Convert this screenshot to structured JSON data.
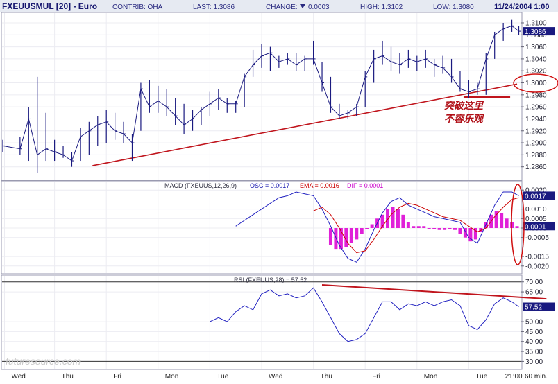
{
  "header": {
    "symbol": "FXEUUSMUL [20] - Euro",
    "contrib": "CONTRIB: OHA",
    "last": "LAST: 1.3086",
    "change_label": "CHANGE:",
    "change_value": "0.0003",
    "high": "HIGH: 1.3102",
    "low": "LOW: 1.3080",
    "datetime": "11/24/2004 1:00"
  },
  "watermark": "futuresource.com",
  "colors": {
    "price": "#1a1a80",
    "trend": "#c0141c",
    "macd_hist": "#e020d8",
    "signal": "#cc0000",
    "label_box": "#1a1a80"
  },
  "annotations": {
    "breakout_line1": "突破这里",
    "breakout_line2": "不容乐观"
  },
  "chart_data": [
    {
      "type": "line",
      "panel": "price",
      "x_axis": {
        "interval": "60 min.",
        "labels": [
          "Wed",
          "Thu",
          "Fri",
          "Mon",
          "Tue",
          "Wed",
          "Thu",
          "Fri",
          "Mon",
          "Tue",
          "21:00"
        ],
        "positions": [
          0.1,
          3,
          6,
          9,
          12,
          15,
          18,
          21,
          24,
          27,
          29.5
        ]
      },
      "ylim": [
        1.284,
        1.3115
      ],
      "yticks": [
        1.286,
        1.288,
        1.29,
        1.292,
        1.294,
        1.296,
        1.298,
        1.3,
        1.302,
        1.304,
        1.306,
        1.308,
        1.31
      ],
      "current_label": "1.3086",
      "series": [
        {
          "kind": "hlc",
          "x": [
            0,
            1,
            1.5,
            2,
            2.5,
            3,
            3.5,
            4,
            4.5,
            5,
            5.5,
            6,
            6.5,
            7,
            7.5,
            8,
            8.5,
            9,
            9.5,
            10,
            10.5,
            11,
            11.5,
            12,
            12.5,
            13,
            13.5,
            14,
            14.5,
            15,
            15.5,
            16,
            16.5,
            17,
            17.5,
            18,
            18.5,
            19,
            19.5,
            20,
            20.5,
            21,
            21.5,
            22,
            22.5,
            23,
            23.5,
            24,
            24.5,
            25,
            25.5,
            26,
            26.5,
            27,
            27.5,
            28,
            28.5,
            29,
            29.5,
            29.9
          ],
          "high": [
            1.2905,
            1.291,
            1.296,
            1.301,
            1.295,
            1.2905,
            1.2895,
            1.2885,
            1.2925,
            1.2935,
            1.2945,
            1.2955,
            1.295,
            1.2935,
            1.2915,
            1.3,
            1.3005,
            1.2995,
            1.299,
            1.2975,
            1.2965,
            1.2955,
            1.296,
            1.2985,
            1.299,
            1.2975,
            1.297,
            1.3015,
            1.3055,
            1.3065,
            1.306,
            1.3045,
            1.305,
            1.305,
            1.3045,
            1.307,
            1.3035,
            1.301,
            1.2965,
            1.2955,
            1.2965,
            1.302,
            1.3055,
            1.307,
            1.306,
            1.305,
            1.3055,
            1.3045,
            1.3055,
            1.304,
            1.3045,
            1.304,
            1.302,
            1.3005,
            1.3,
            1.305,
            1.3085,
            1.31,
            1.3105,
            1.3095
          ],
          "low": [
            1.2885,
            1.288,
            1.287,
            1.285,
            1.287,
            1.287,
            1.2875,
            1.286,
            1.287,
            1.288,
            1.2895,
            1.29,
            1.2905,
            1.29,
            1.287,
            1.292,
            1.295,
            1.295,
            1.2945,
            1.293,
            1.2915,
            1.292,
            1.293,
            1.2945,
            1.2955,
            1.295,
            1.295,
            1.296,
            1.301,
            1.3025,
            1.302,
            1.3025,
            1.303,
            1.302,
            1.302,
            1.303,
            1.2985,
            1.295,
            1.294,
            1.294,
            1.2945,
            1.296,
            1.3,
            1.303,
            1.302,
            1.3015,
            1.3025,
            1.302,
            1.3025,
            1.301,
            1.3015,
            1.3,
            1.2985,
            1.2975,
            1.298,
            1.298,
            1.304,
            1.307,
            1.3085,
            1.308
          ],
          "close": [
            1.2895,
            1.289,
            1.294,
            1.288,
            1.289,
            1.2885,
            1.288,
            1.287,
            1.291,
            1.292,
            1.293,
            1.2935,
            1.292,
            1.2915,
            1.29,
            1.299,
            1.296,
            1.297,
            1.296,
            1.2945,
            1.293,
            1.294,
            1.2955,
            1.2965,
            1.2975,
            1.2965,
            1.2965,
            1.301,
            1.303,
            1.3045,
            1.305,
            1.3035,
            1.304,
            1.303,
            1.304,
            1.304,
            1.3,
            1.296,
            1.2945,
            1.295,
            1.296,
            1.301,
            1.304,
            1.3045,
            1.3035,
            1.303,
            1.304,
            1.3035,
            1.304,
            1.303,
            1.3025,
            1.301,
            1.299,
            1.2985,
            1.299,
            1.304,
            1.308,
            1.309,
            1.3095,
            1.3086
          ]
        }
      ],
      "trendlines": [
        {
          "x": [
            5.2,
            29.8
          ],
          "y": [
            1.2862,
            1.2998
          ]
        },
        {
          "x": [
            26.7,
            29.4
          ],
          "y": [
            1.2976,
            1.2976
          ]
        }
      ]
    },
    {
      "type": "bar",
      "panel": "macd",
      "title": "MACD (FXEUUS,12,26,9)",
      "osc_label": "OSC = 0.0017",
      "ema_label": "EMA = 0.0016",
      "dif_label": "DIF = 0.0001",
      "ylim": [
        -0.0023,
        0.0023
      ],
      "yticks": [
        0.002,
        0.001,
        0.0005,
        0.0,
        -0.0005,
        -0.0015,
        -0.002
      ],
      "ytick_labels": [
        "0.0020",
        "0.0010",
        "0.0005",
        "0.0000",
        "-0.0005",
        "-0.0015",
        "-0.0020"
      ],
      "boxed": [
        {
          "label": "0.0017",
          "value": 0.0017
        },
        {
          "label": "0.0001",
          "value": 0.0001
        }
      ],
      "osc": {
        "x": [
          13.5,
          14,
          14.5,
          15,
          15.5,
          16,
          16.5,
          17,
          17.5,
          18,
          18.5,
          19,
          19.5,
          20,
          20.5,
          21,
          21.5,
          22,
          22.5,
          23,
          23.5,
          24,
          24.5,
          25,
          25.5,
          26,
          26.5,
          27,
          27.5,
          28,
          28.5,
          29,
          29.5,
          29.9
        ],
        "values": [
          0.0001,
          0.0004,
          0.0007,
          0.001,
          0.0013,
          0.0016,
          0.0017,
          0.0019,
          0.0018,
          0.0017,
          0.001,
          0.0001,
          -0.0009,
          -0.0016,
          -0.0018,
          -0.0011,
          -0.0001,
          0.0008,
          0.0014,
          0.0016,
          0.0012,
          0.001,
          0.0008,
          0.0006,
          0.0005,
          0.0004,
          0.0003,
          -0.0005,
          -0.0008,
          0.0002,
          0.0012,
          0.0019,
          0.0019,
          0.0017
        ]
      },
      "ema": {
        "x": [
          18,
          18.5,
          19,
          19.5,
          20,
          20.5,
          21,
          21.5,
          22,
          22.5,
          23,
          23.5,
          24,
          24.5,
          25,
          25.5,
          26,
          26.5,
          27,
          27.5,
          28,
          28.5,
          29,
          29.5,
          29.9
        ],
        "values": [
          0.0009,
          0.0011,
          0.0007,
          0.0,
          -0.0008,
          -0.0013,
          -0.0012,
          -0.0006,
          0.0001,
          0.0007,
          0.0011,
          0.0013,
          0.0012,
          0.001,
          0.0008,
          0.0006,
          0.0005,
          0.0004,
          0.0001,
          -0.0002,
          0.0,
          0.0006,
          0.0011,
          0.0015,
          0.0016
        ]
      },
      "hist": {
        "x": [
          19,
          19.3,
          19.6,
          19.9,
          20.2,
          20.5,
          20.8,
          21.1,
          21.4,
          21.7,
          22,
          22.3,
          22.6,
          22.9,
          23.2,
          23.5,
          23.8,
          24.1,
          24.4,
          24.7,
          25,
          25.3,
          25.6,
          25.9,
          26.2,
          26.5,
          26.8,
          27.1,
          27.4,
          27.7,
          28,
          28.3,
          28.6,
          28.9,
          29.2,
          29.5,
          29.8
        ],
        "values": [
          -0.0009,
          -0.0011,
          -0.0011,
          -0.001,
          -0.0008,
          -0.0006,
          -0.0003,
          0.0,
          0.0002,
          0.0005,
          0.0007,
          0.001,
          0.0011,
          0.001,
          0.0007,
          0.0003,
          0.0001,
          0.0001,
          0.0001,
          0.0,
          0.0,
          -0.0001,
          -0.0001,
          0.0,
          -0.0001,
          -0.0003,
          -0.0005,
          -0.0007,
          -0.0006,
          -0.0002,
          0.0003,
          0.0007,
          0.0009,
          0.0008,
          0.0005,
          0.0003,
          0.0001
        ]
      }
    },
    {
      "type": "line",
      "panel": "rsi",
      "title": "RSI (FXEUUS,28) = 57.52",
      "ylim": [
        27,
        72
      ],
      "yticks": [
        70,
        65,
        50,
        45,
        40,
        35,
        30
      ],
      "ytick_labels": [
        "70.00",
        "65.00",
        "50.00",
        "45.00",
        "40.00",
        "35.00",
        "30.00"
      ],
      "current_label": "57.52",
      "x": [
        12,
        12.5,
        13,
        13.5,
        14,
        14.5,
        15,
        15.5,
        16,
        16.5,
        17,
        17.5,
        18,
        18.5,
        19,
        19.5,
        20,
        20.5,
        21,
        21.5,
        22,
        22.5,
        23,
        23.5,
        24,
        24.5,
        25,
        25.5,
        26,
        26.5,
        27,
        27.5,
        28,
        28.5,
        29,
        29.5,
        29.9
      ],
      "values": [
        50,
        52,
        50,
        55,
        58,
        56,
        64,
        66,
        63,
        64,
        62,
        63,
        67,
        60,
        52,
        44,
        40,
        41,
        44,
        52,
        60,
        60,
        56,
        59,
        58,
        60,
        58,
        60,
        61,
        58,
        48,
        46,
        51,
        59,
        62,
        60,
        57.52
      ],
      "trendlines": [
        {
          "x": [
            18.5,
            31.5
          ],
          "y": [
            68.5,
            61.5
          ]
        }
      ]
    }
  ]
}
